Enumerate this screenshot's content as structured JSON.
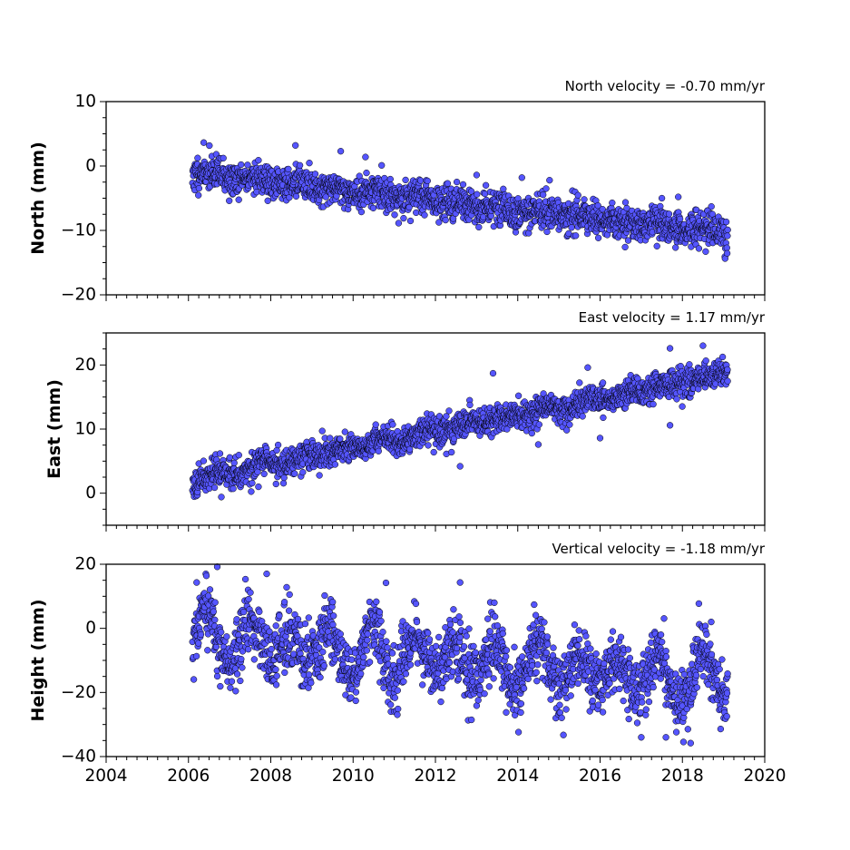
{
  "chart_data": [
    {
      "type": "scatter",
      "annotation": "North velocity = -0.70 mm/yr",
      "ylabel": "North (mm)",
      "ylim": [
        -20,
        10
      ],
      "yticks": [
        10,
        0,
        -10,
        -20
      ],
      "yticklabels": [
        "10",
        "0",
        "−10",
        "−20"
      ],
      "xlim": [
        2004,
        2020
      ],
      "time_range": [
        2006.1,
        2019.1
      ],
      "velocity": -0.7,
      "trend": {
        "start_value": -1.0,
        "end_value": -10.5
      },
      "scatter_spread": 1.3,
      "seasonal_amplitude": 0.4,
      "outliers": [
        [
          2008.6,
          3.2
        ],
        [
          2009.7,
          2.3
        ],
        [
          2010.3,
          1.4
        ],
        [
          2013.0,
          -1.4
        ],
        [
          2017.5,
          -5.0
        ],
        [
          2017.9,
          -4.8
        ],
        [
          2018.4,
          -12.8
        ],
        [
          2014.1,
          -1.8
        ]
      ],
      "series": [
        {
          "color": "#5555ff",
          "edge_color": "#000000"
        }
      ]
    },
    {
      "type": "scatter",
      "annotation": "East velocity = 1.17 mm/yr",
      "ylabel": "East (mm)",
      "ylim": [
        -5,
        25
      ],
      "yticks": [
        20,
        10,
        0
      ],
      "yticklabels": [
        "20",
        "10",
        "0"
      ],
      "xlim": [
        2004,
        2020
      ],
      "time_range": [
        2006.1,
        2019.1
      ],
      "velocity": 1.17,
      "trend": {
        "start_value": 2.2,
        "end_value": 18.6
      },
      "scatter_spread": 1.1,
      "seasonal_amplitude": 0.4,
      "outliers": [
        [
          2006.8,
          -0.6
        ],
        [
          2007.7,
          1.0
        ],
        [
          2012.6,
          4.2
        ],
        [
          2013.4,
          18.7
        ],
        [
          2015.7,
          19.6
        ],
        [
          2017.7,
          22.6
        ],
        [
          2018.5,
          23.0
        ],
        [
          2016.0,
          8.6
        ],
        [
          2017.7,
          10.6
        ],
        [
          2014.5,
          7.6
        ]
      ],
      "series": [
        {
          "color": "#5555ff",
          "edge_color": "#000000"
        }
      ]
    },
    {
      "type": "scatter",
      "annotation": "Vertical velocity = -1.18 mm/yr",
      "ylabel": "Height (mm)",
      "ylim": [
        -40,
        20
      ],
      "yticks": [
        20,
        0,
        -20,
        -40
      ],
      "yticklabels": [
        "20",
        "0",
        "−20",
        "−40"
      ],
      "xlim": [
        2004,
        2020
      ],
      "time_range": [
        2006.1,
        2019.1
      ],
      "velocity": -1.18,
      "trend": {
        "start_value": -3.0,
        "end_value": -17.0
      },
      "scatter_spread": 5.0,
      "seasonal_amplitude": 6.0,
      "outliers": [
        [
          2006.7,
          19.2
        ],
        [
          2007.9,
          17.0
        ],
        [
          2006.2,
          14.3
        ],
        [
          2010.8,
          14.2
        ],
        [
          2012.6,
          14.3
        ],
        [
          2018.2,
          -35.8
        ],
        [
          2017.0,
          -34.0
        ],
        [
          2017.6,
          -34.0
        ],
        [
          2018.7,
          2.0
        ]
      ],
      "series": [
        {
          "color": "#5555ff",
          "edge_color": "#000000"
        }
      ]
    }
  ],
  "x_axis": {
    "ticks": [
      2004,
      2006,
      2008,
      2010,
      2012,
      2014,
      2016,
      2018,
      2020
    ],
    "ticklabels": [
      "2004",
      "2006",
      "2008",
      "2010",
      "2012",
      "2014",
      "2016",
      "2018",
      "2020"
    ],
    "minor_ticks_per_year": 4
  }
}
